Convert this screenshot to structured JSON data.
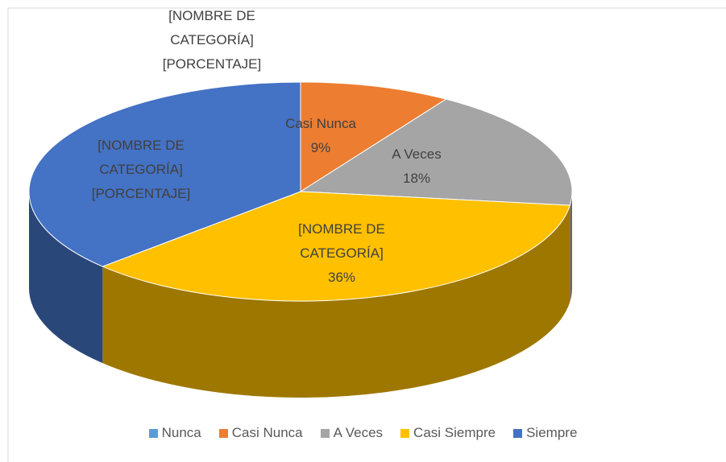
{
  "chart_data": {
    "type": "pie",
    "categories": [
      "Nunca",
      "Casi Nunca",
      "A Veces",
      "Casi Siempre",
      "Siempre"
    ],
    "values": [
      0,
      9,
      18,
      36,
      37
    ],
    "label_names": [
      "[NOMBRE DE CATEGORÍA]",
      "Casi Nunca",
      "A Veces",
      "[NOMBRE DE CATEGORÍA]",
      "[NOMBRE DE CATEGORÍA]"
    ],
    "value_labels": [
      "[PORCENTAJE]",
      "9%",
      "18%",
      "36%",
      "[PORCENTAJE]"
    ],
    "colors": [
      "#5b9bd5",
      "#ed7d31",
      "#a5a5a5",
      "#ffc000",
      "#4472c4"
    ],
    "legend": "bottom"
  }
}
